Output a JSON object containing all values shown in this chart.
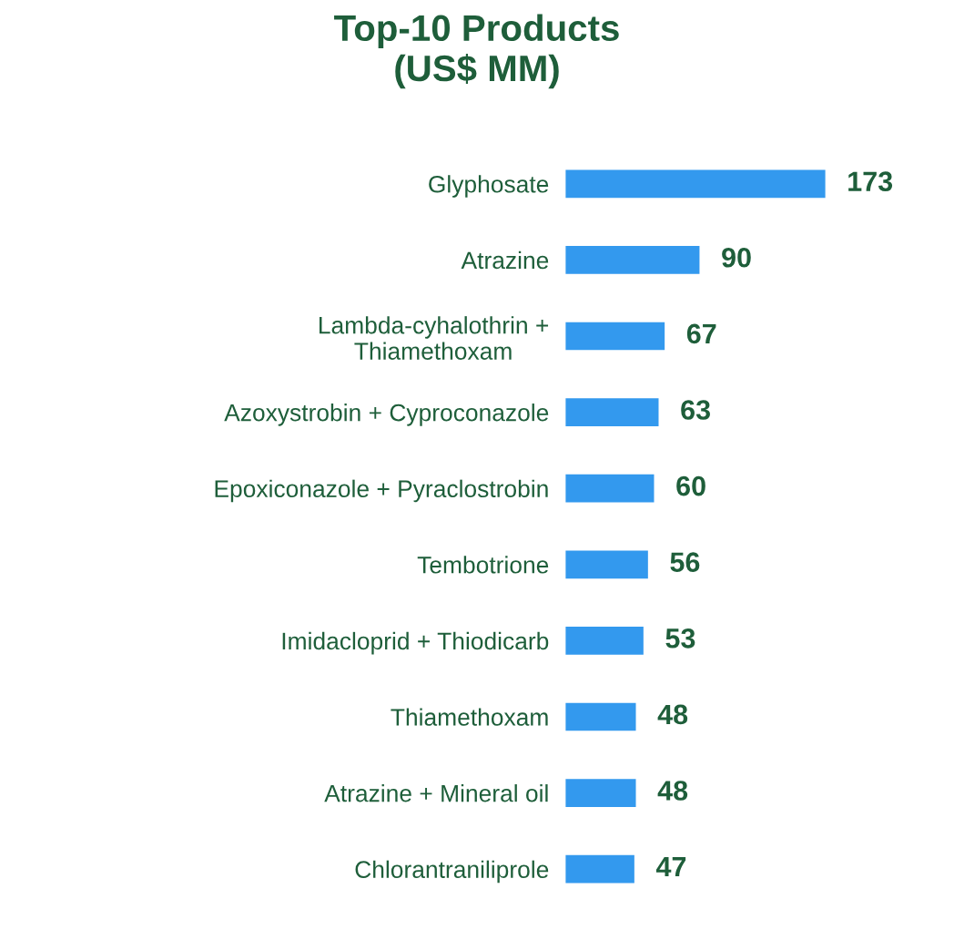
{
  "chart_data": {
    "type": "bar",
    "orientation": "horizontal",
    "title": "Top-10 Products\n(US$ MM)",
    "categories": [
      "Glyphosate",
      "Atrazine",
      "Lambda-cyhalothrin +\nThiamethoxam",
      "Azoxystrobin + Cyproconazole",
      "Epoxiconazole + Pyraclostrobin",
      "Tembotrione",
      "Imidacloprid + Thiodicarb",
      "Thiamethoxam",
      "Atrazine + Mineral oil",
      "Chlorantraniliprole"
    ],
    "values": [
      173,
      90,
      67,
      63,
      60,
      56,
      53,
      48,
      48,
      47
    ],
    "color": "#3399ee",
    "data_labels": true,
    "grid": false,
    "legend": false,
    "tick_labels": "y"
  }
}
